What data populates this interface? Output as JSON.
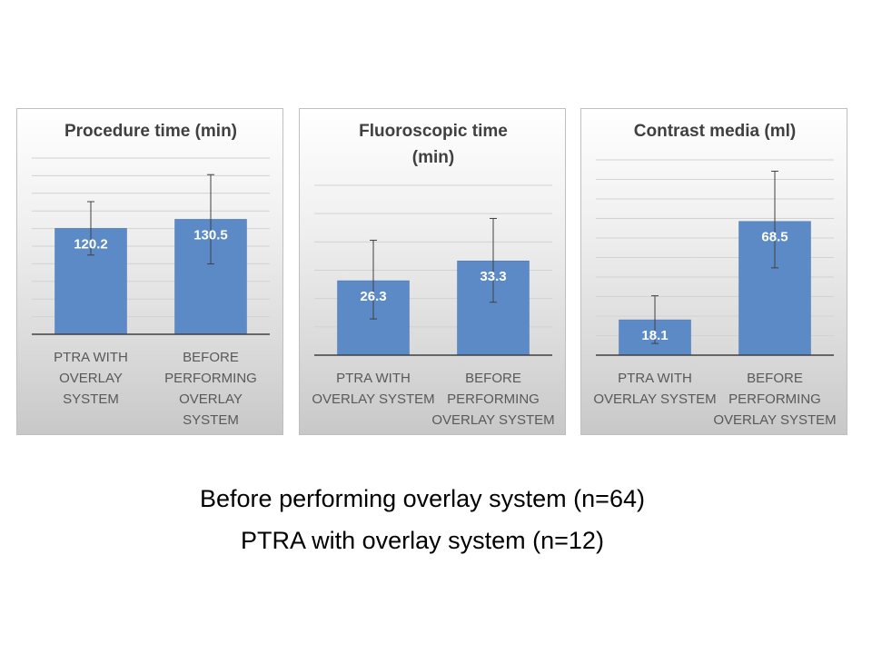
{
  "chart_data": [
    {
      "type": "bar",
      "title": "Procedure time (min)",
      "categories": [
        "PTRA WITH OVERLAY SYSTEM",
        "BEFORE PERFORMING OVERLAY SYSTEM"
      ],
      "values": [
        120.2,
        130.5
      ],
      "error_bars": [
        [
          89.9,
          150.5
        ],
        [
          79.8,
          181.2
        ]
      ],
      "ylim": [
        0,
        200
      ],
      "grid": true,
      "xlabel": "",
      "ylabel": ""
    },
    {
      "type": "bar",
      "title": "Fluoroscopic time (min)",
      "categories": [
        "PTRA WITH OVERLAY SYSTEM",
        "BEFORE PERFORMING OVERLAY SYSTEM"
      ],
      "values": [
        26.3,
        33.3
      ],
      "error_bars": [
        [
          12.8,
          40.6
        ],
        [
          18.7,
          48.3
        ]
      ],
      "ylim": [
        0,
        60
      ],
      "grid": true,
      "xlabel": "",
      "ylabel": ""
    },
    {
      "type": "bar",
      "title": "Contrast media (ml)",
      "categories": [
        "PTRA WITH OVERLAY SYSTEM",
        "BEFORE PERFORMING OVERLAY SYSTEM"
      ],
      "values": [
        18.1,
        68.5
      ],
      "error_bars": [
        [
          6.0,
          30.4
        ],
        [
          44.7,
          94.2
        ]
      ],
      "ylim": [
        0,
        100
      ],
      "grid": true,
      "xlabel": "",
      "ylabel": ""
    }
  ],
  "captions": {
    "line1": "Before performing overlay system (n=64)",
    "line2": "PTRA with overlay system (n=12)"
  },
  "colors": {
    "bar": "#5b8ac7",
    "bar_edge": "#4a76b0",
    "grid": "#d2d2d2",
    "axis": "#404040",
    "error_bar": "#404040",
    "title": "#404040",
    "tick_label": "#595959",
    "data_label": "#ffffff"
  }
}
